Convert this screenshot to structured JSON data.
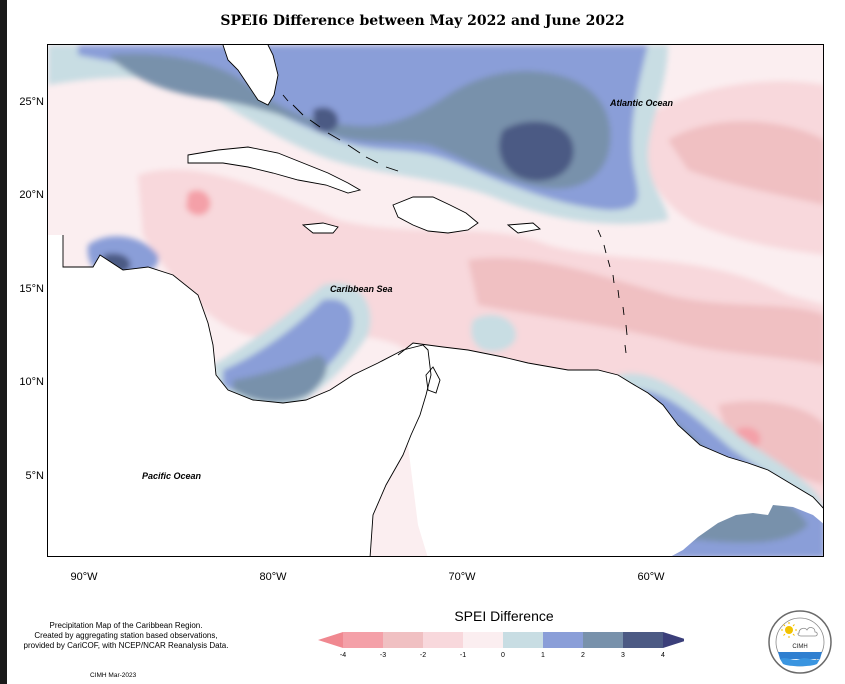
{
  "title": "SPEI6 Difference between May 2022 and June 2022",
  "map": {
    "lat_labels": [
      "25°N",
      "20°N",
      "15°N",
      "10°N",
      "5°N"
    ],
    "lon_labels": [
      "90°W",
      "80°W",
      "70°W",
      "60°W"
    ],
    "ocean_labels": {
      "atlantic": "Atlantic Ocean",
      "caribbean": "Caribbean Sea",
      "pacific": "Pacific Ocean"
    },
    "colors": {
      "neg_4_3": "#f4a0a8",
      "neg_3_2": "#f0c0c2",
      "neg_2_1": "#f8d8dc",
      "neg_1_0": "#fbeef0",
      "pos_0_1": "#c8dde3",
      "pos_1_2": "#8a9ed8",
      "pos_2_3": "#7891ab",
      "pos_3_4": "#4c5a84",
      "land": "#ffffff",
      "coast": "#000000"
    }
  },
  "credits": {
    "line1": "Precipitation Map of the Caribbean Region.",
    "line2": "Created by aggregating station based observations,",
    "line3": "provided by CariCOF, with NCEP/NCAR Reanalysis Data.",
    "stamp": "CIMH Mar-2023"
  },
  "legend": {
    "title": "SPEI Difference",
    "ticks": [
      "-4",
      "-3",
      "-2",
      "-1",
      "0",
      "1",
      "2",
      "3",
      "4"
    ],
    "colors": [
      "#f4a0a8",
      "#f0c0c2",
      "#f8d8dc",
      "#fbeef0",
      "#c8dde3",
      "#8a9ed8",
      "#7891ab",
      "#4c5a84"
    ],
    "under_color": "#f08890",
    "over_color": "#3b3f7a"
  },
  "logo": {
    "text": "CIMH"
  }
}
